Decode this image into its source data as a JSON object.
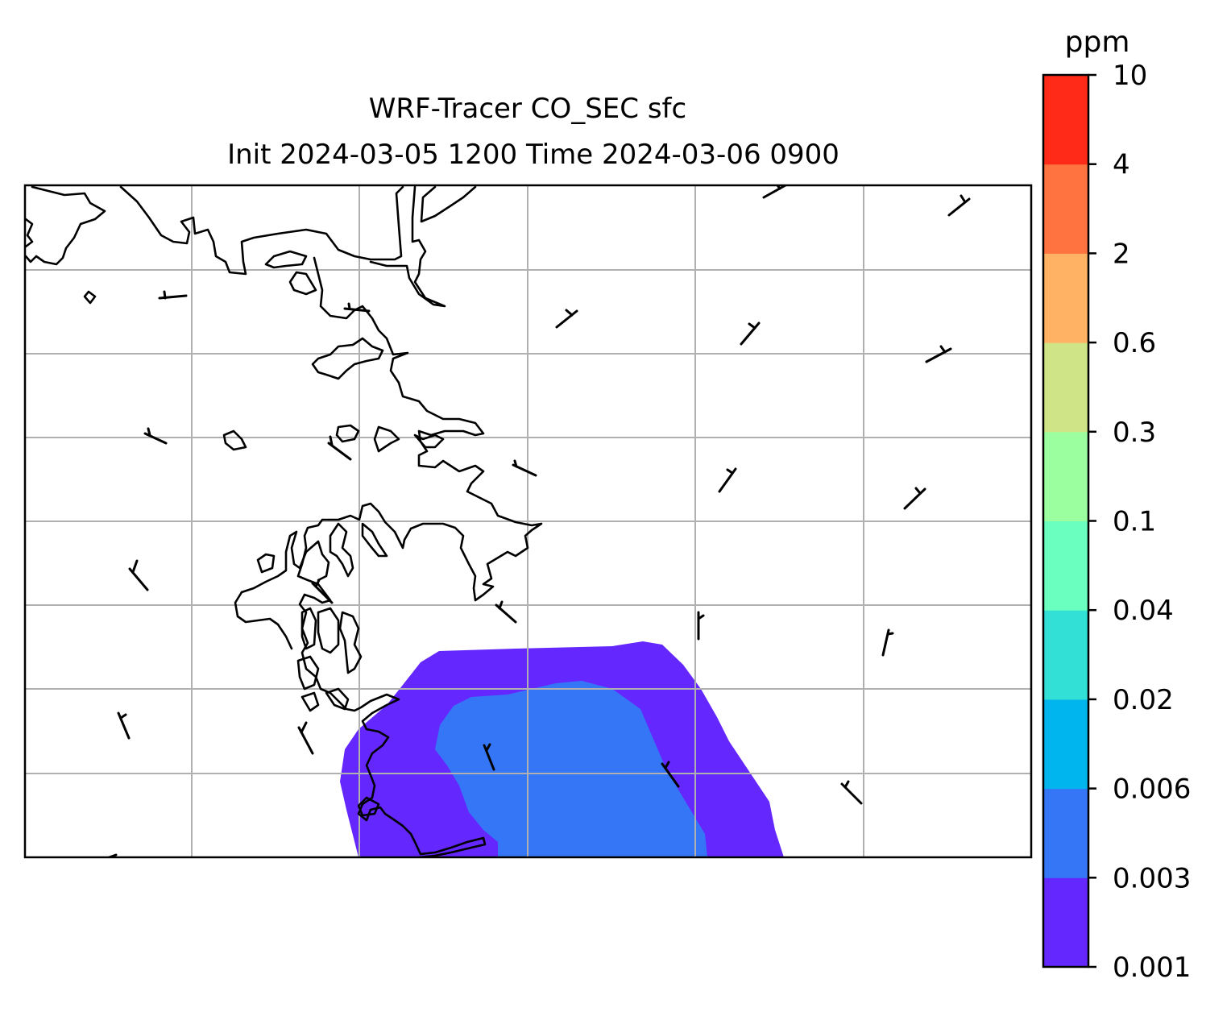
{
  "figure": {
    "title_line1": "WRF-Tracer CO_SEC sfc",
    "title_line2": "Init 2024-03-05 1200 Time 2024-03-06 0900"
  },
  "colorbar": {
    "unit_label": "ppm",
    "levels": [
      "0.001",
      "0.003",
      "0.006",
      "0.02",
      "0.04",
      "0.1",
      "0.3",
      "0.6",
      "2",
      "4",
      "10"
    ],
    "colors": [
      "#6428ff",
      "#3576f6",
      "#00b4ee",
      "#33e0d6",
      "#6affbe",
      "#9bffa0",
      "#cfe487",
      "#ffb264",
      "#ff7340",
      "#ff2a17"
    ]
  },
  "map": {
    "gridline_color": "#b0b0b0",
    "coastline_color": "#000000",
    "tracer_shading": [
      {
        "level_from": "0.001",
        "level_to": "0.003",
        "color": "#6428ff"
      },
      {
        "level_from": "0.003",
        "level_to": "0.006",
        "color": "#3576f6"
      }
    ],
    "wind_barbs_present": true
  }
}
